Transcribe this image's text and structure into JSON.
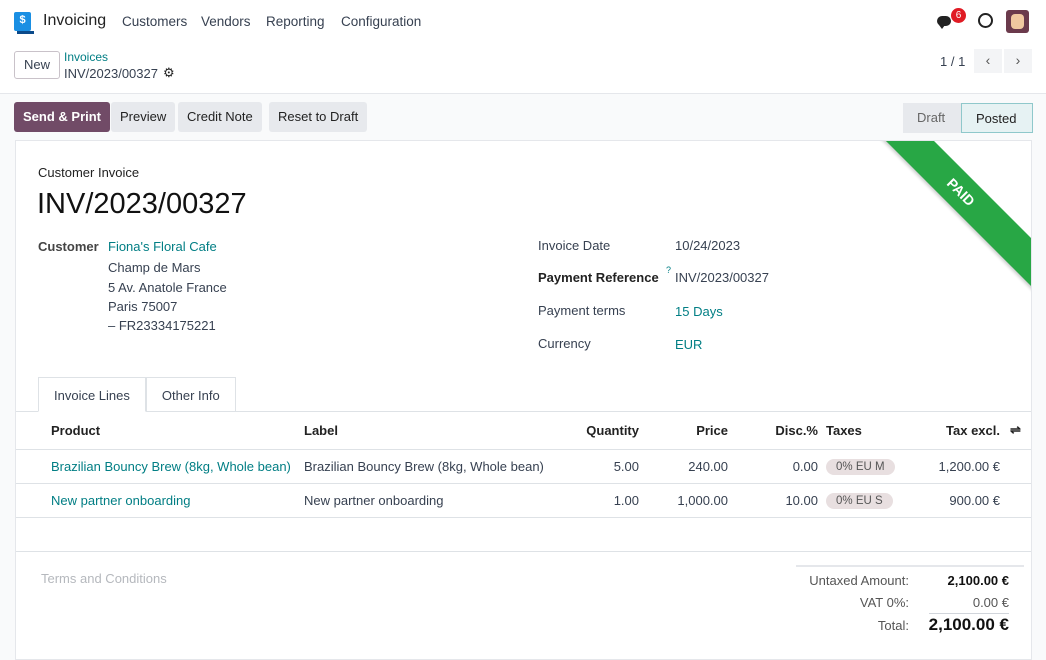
{
  "nav": {
    "app": "Invoicing",
    "menu": [
      "Customers",
      "Vendors",
      "Reporting",
      "Configuration"
    ],
    "messages_badge": "6"
  },
  "control": {
    "new": "New",
    "breadcrumb_parent": "Invoices",
    "breadcrumb_current": "INV/2023/00327",
    "pager": "1 / 1"
  },
  "actions": [
    "Send & Print",
    "Preview",
    "Credit Note",
    "Reset to Draft"
  ],
  "status": {
    "steps": [
      "Draft",
      "Posted"
    ],
    "current": "Posted"
  },
  "invoice": {
    "type": "Customer Invoice",
    "number": "INV/2023/00327",
    "ribbon": "PAID",
    "customer_label": "Customer",
    "customer_name": "Fiona's Floral Cafe",
    "address": [
      "Champ de Mars",
      "5 Av. Anatole France",
      "Paris 75007",
      "– FR23334175221"
    ],
    "fields": [
      {
        "label": "Invoice Date",
        "value": "10/24/2023"
      },
      {
        "label": "Payment Reference",
        "value": "INV/2023/00327",
        "help": "?"
      },
      {
        "label": "Payment terms",
        "value": "15 Days"
      },
      {
        "label": "Currency",
        "value": "EUR"
      }
    ]
  },
  "tabs": [
    "Invoice Lines",
    "Other Info"
  ],
  "lines": {
    "headers": [
      "Product",
      "Label",
      "Quantity",
      "Price",
      "Disc.%",
      "Taxes",
      "Tax excl."
    ],
    "rows": [
      [
        "Brazilian Bouncy Brew (8kg, Whole bean)",
        "Brazilian Bouncy Brew (8kg, Whole bean)",
        "5.00",
        "240.00",
        "0.00",
        "0% EU M",
        "1,200.00 €"
      ],
      [
        "New partner onboarding",
        "New partner onboarding",
        "1.00",
        "1,000.00",
        "10.00",
        "0% EU S",
        "900.00 €"
      ]
    ]
  },
  "terms_placeholder": "Terms and Conditions",
  "totals": {
    "untaxed_label": "Untaxed Amount:",
    "untaxed": "2,100.00 €",
    "vat_label": "VAT 0%:",
    "vat": "0.00 €",
    "total_label": "Total:",
    "total": "2,100.00 €"
  },
  "colors": {
    "primary": "#714b67",
    "link": "#017e84",
    "paid": "#28a745",
    "badge": "#e01b24"
  }
}
